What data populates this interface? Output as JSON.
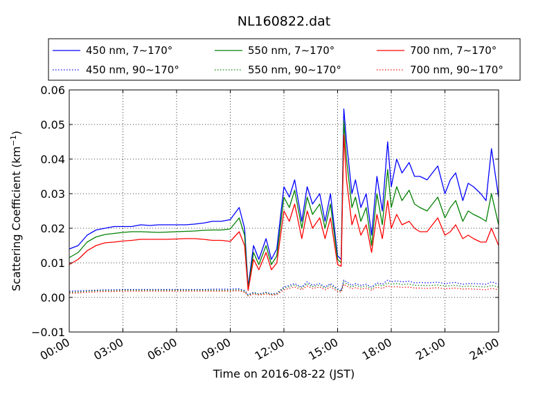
{
  "chart_data": {
    "type": "line",
    "title": "NL160822.dat",
    "xlabel": "Time on 2016-08-22 (JST)",
    "ylabel": "Scattering Coefficient (km",
    "ylabel_sup": "−1",
    "ylabel_end": ")",
    "x_unit": "hours",
    "xlim": [
      0,
      24
    ],
    "ylim": [
      -0.01,
      0.06
    ],
    "x_ticks": [
      0,
      3,
      6,
      9,
      12,
      15,
      18,
      21,
      24
    ],
    "x_tick_labels": [
      "00:00",
      "03:00",
      "06:00",
      "09:00",
      "12:00",
      "15:00",
      "18:00",
      "21:00",
      "24:00"
    ],
    "y_ticks": [
      -0.01,
      0.0,
      0.01,
      0.02,
      0.03,
      0.04,
      0.05,
      0.06
    ],
    "y_tick_labels": [
      "−0.01",
      "0.00",
      "0.01",
      "0.02",
      "0.03",
      "0.04",
      "0.05",
      "0.06"
    ],
    "grid": true,
    "legend_position": "top",
    "x": [
      0,
      0.5,
      1,
      1.5,
      2,
      2.5,
      3,
      3.5,
      4,
      4.5,
      5,
      5.5,
      6,
      6.5,
      7,
      7.5,
      8,
      8.5,
      9,
      9.5,
      9.8,
      10,
      10.3,
      10.6,
      11,
      11.3,
      11.6,
      12,
      12.3,
      12.6,
      13,
      13.3,
      13.6,
      14,
      14.3,
      14.6,
      15,
      15.2,
      15.35,
      15.5,
      15.8,
      16,
      16.3,
      16.6,
      16.9,
      17.2,
      17.5,
      17.8,
      18,
      18.3,
      18.6,
      19,
      19.3,
      19.6,
      20,
      20.3,
      20.6,
      21,
      21.3,
      21.6,
      22,
      22.3,
      22.6,
      23,
      23.3,
      23.6,
      24
    ],
    "series": [
      {
        "name": "450 nm, 7∼170°",
        "color": "#0000ff",
        "style": "solid",
        "values": [
          0.014,
          0.015,
          0.018,
          0.0195,
          0.02,
          0.0205,
          0.0205,
          0.0205,
          0.021,
          0.0208,
          0.021,
          0.021,
          0.021,
          0.021,
          0.0212,
          0.0215,
          0.022,
          0.022,
          0.0225,
          0.026,
          0.02,
          0.003,
          0.015,
          0.011,
          0.017,
          0.011,
          0.014,
          0.032,
          0.029,
          0.034,
          0.022,
          0.032,
          0.027,
          0.03,
          0.022,
          0.03,
          0.012,
          0.011,
          0.0545,
          0.045,
          0.03,
          0.034,
          0.026,
          0.03,
          0.018,
          0.035,
          0.025,
          0.045,
          0.032,
          0.04,
          0.036,
          0.039,
          0.035,
          0.035,
          0.034,
          0.036,
          0.038,
          0.03,
          0.034,
          0.036,
          0.028,
          0.033,
          0.032,
          0.03,
          0.028,
          0.043,
          0.029
        ]
      },
      {
        "name": "550 nm, 7∼170°",
        "color": "#008000",
        "style": "solid",
        "values": [
          0.0115,
          0.013,
          0.016,
          0.0175,
          0.0182,
          0.0185,
          0.0188,
          0.019,
          0.019,
          0.0189,
          0.0188,
          0.0189,
          0.019,
          0.0191,
          0.0192,
          0.0194,
          0.0195,
          0.0195,
          0.0198,
          0.023,
          0.018,
          0.0025,
          0.013,
          0.0095,
          0.015,
          0.0095,
          0.012,
          0.029,
          0.026,
          0.031,
          0.02,
          0.029,
          0.024,
          0.027,
          0.02,
          0.027,
          0.011,
          0.01,
          0.051,
          0.04,
          0.026,
          0.029,
          0.022,
          0.026,
          0.015,
          0.03,
          0.021,
          0.037,
          0.026,
          0.032,
          0.028,
          0.031,
          0.027,
          0.026,
          0.025,
          0.027,
          0.029,
          0.023,
          0.026,
          0.028,
          0.022,
          0.025,
          0.024,
          0.023,
          0.022,
          0.03,
          0.021
        ]
      },
      {
        "name": "700 nm, 7∼170°",
        "color": "#ff0000",
        "style": "solid",
        "values": [
          0.0095,
          0.011,
          0.0135,
          0.015,
          0.0158,
          0.016,
          0.0163,
          0.0165,
          0.0168,
          0.0168,
          0.0168,
          0.0168,
          0.0169,
          0.017,
          0.017,
          0.0168,
          0.0165,
          0.0165,
          0.0162,
          0.019,
          0.015,
          0.002,
          0.011,
          0.008,
          0.013,
          0.008,
          0.01,
          0.025,
          0.022,
          0.027,
          0.017,
          0.025,
          0.02,
          0.023,
          0.017,
          0.023,
          0.0095,
          0.009,
          0.047,
          0.034,
          0.021,
          0.024,
          0.018,
          0.021,
          0.013,
          0.024,
          0.017,
          0.028,
          0.02,
          0.024,
          0.021,
          0.022,
          0.02,
          0.019,
          0.019,
          0.021,
          0.023,
          0.018,
          0.019,
          0.021,
          0.017,
          0.018,
          0.017,
          0.016,
          0.016,
          0.02,
          0.015
        ]
      },
      {
        "name": "450 nm, 90∼170°",
        "color": "#0000ff",
        "style": "dotted",
        "values": [
          0.0018,
          0.0019,
          0.002,
          0.0021,
          0.0022,
          0.0022,
          0.0023,
          0.0023,
          0.0023,
          0.0023,
          0.0023,
          0.0023,
          0.0023,
          0.0023,
          0.0023,
          0.0023,
          0.0024,
          0.0024,
          0.0024,
          0.0025,
          0.002,
          0.0008,
          0.0015,
          0.001,
          0.0015,
          0.001,
          0.0012,
          0.003,
          0.0035,
          0.004,
          0.003,
          0.0045,
          0.0035,
          0.004,
          0.003,
          0.004,
          0.0025,
          0.002,
          0.005,
          0.0045,
          0.0035,
          0.004,
          0.0035,
          0.0038,
          0.003,
          0.0042,
          0.0038,
          0.005,
          0.0045,
          0.0048,
          0.0045,
          0.0047,
          0.0042,
          0.0043,
          0.0042,
          0.0043,
          0.0044,
          0.004,
          0.0042,
          0.0043,
          0.0038,
          0.004,
          0.004,
          0.0039,
          0.0038,
          0.0045,
          0.0038
        ]
      },
      {
        "name": "550 nm, 90∼170°",
        "color": "#008000",
        "style": "dotted",
        "values": [
          0.0015,
          0.0016,
          0.0018,
          0.0019,
          0.002,
          0.002,
          0.0021,
          0.0021,
          0.0021,
          0.0021,
          0.0021,
          0.0021,
          0.0021,
          0.0021,
          0.0021,
          0.0021,
          0.0021,
          0.0021,
          0.0021,
          0.0022,
          0.0018,
          0.0006,
          0.0013,
          0.0009,
          0.0013,
          0.0009,
          0.001,
          0.0027,
          0.0031,
          0.0036,
          0.0027,
          0.004,
          0.0031,
          0.0036,
          0.0027,
          0.0036,
          0.0022,
          0.0018,
          0.0045,
          0.004,
          0.003,
          0.0035,
          0.003,
          0.0033,
          0.0026,
          0.0037,
          0.0033,
          0.0042,
          0.0038,
          0.004,
          0.0037,
          0.0039,
          0.0035,
          0.0035,
          0.0034,
          0.0035,
          0.0036,
          0.0033,
          0.0034,
          0.0035,
          0.0031,
          0.0033,
          0.0032,
          0.0031,
          0.003,
          0.0035,
          0.003
        ]
      },
      {
        "name": "700 nm, 90∼170°",
        "color": "#ff0000",
        "style": "dotted",
        "values": [
          0.0012,
          0.0013,
          0.0015,
          0.0016,
          0.0017,
          0.0017,
          0.0018,
          0.0018,
          0.0018,
          0.0018,
          0.0018,
          0.0018,
          0.0018,
          0.0018,
          0.0018,
          0.0018,
          0.0018,
          0.0018,
          0.0018,
          0.0019,
          0.0015,
          0.0004,
          0.001,
          0.0007,
          0.001,
          0.0007,
          0.0008,
          0.0022,
          0.0026,
          0.003,
          0.0022,
          0.0033,
          0.0026,
          0.003,
          0.0022,
          0.003,
          0.0018,
          0.0015,
          0.0038,
          0.0033,
          0.0025,
          0.0028,
          0.0024,
          0.0027,
          0.0021,
          0.003,
          0.0026,
          0.0033,
          0.003,
          0.0031,
          0.0029,
          0.003,
          0.0027,
          0.0027,
          0.0026,
          0.0027,
          0.0028,
          0.0025,
          0.0026,
          0.0027,
          0.0024,
          0.0025,
          0.0024,
          0.0023,
          0.0022,
          0.0026,
          0.0022
        ]
      }
    ]
  }
}
